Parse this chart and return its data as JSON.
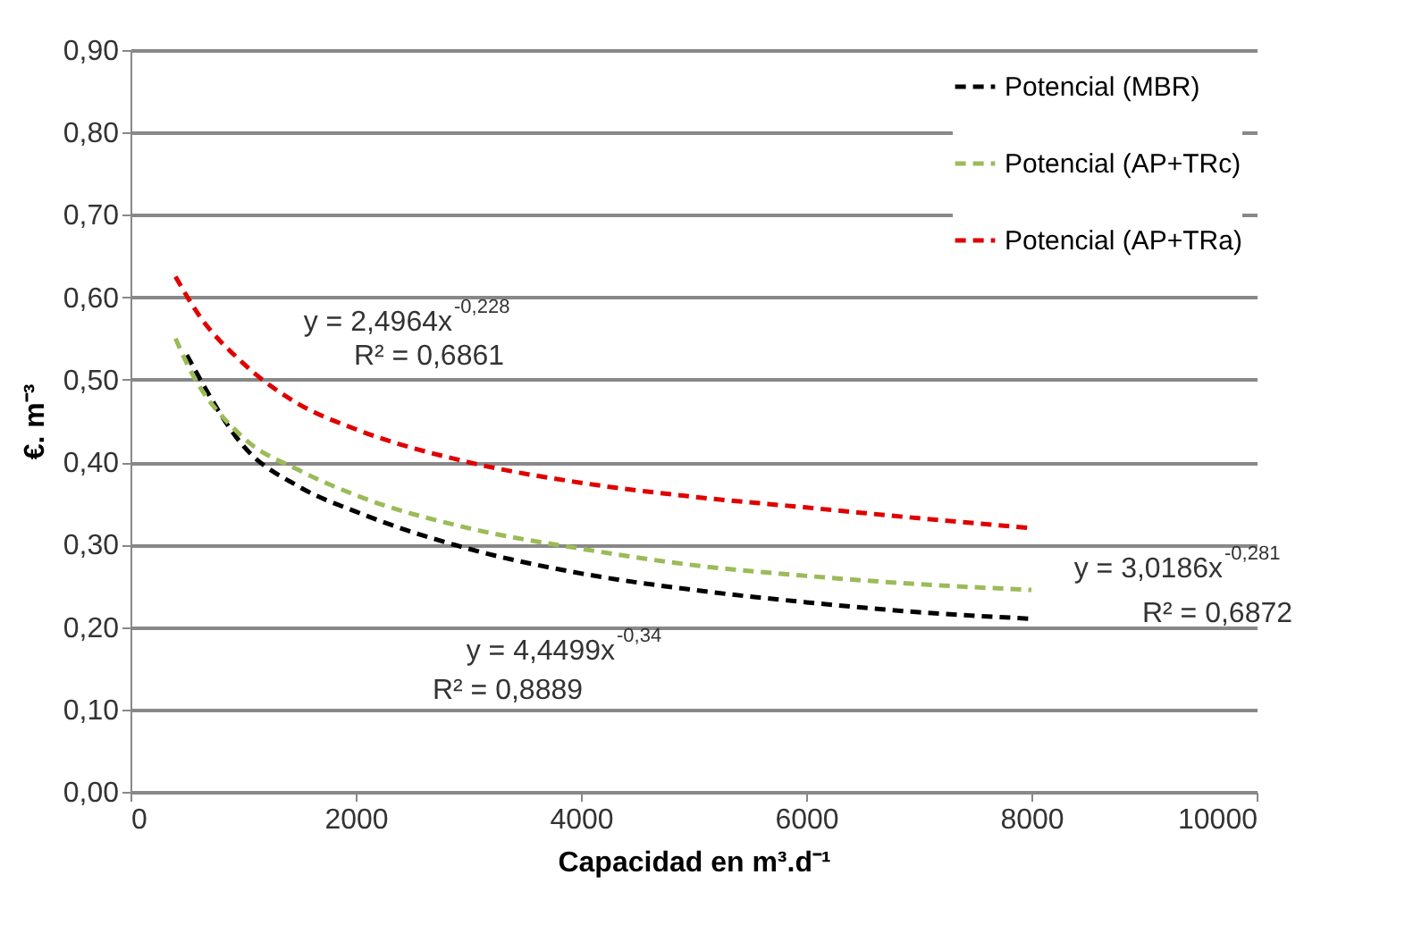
{
  "chart_data": {
    "type": "line",
    "xlabel": "Capacidad en m³.d⁻¹",
    "ylabel": "€. m⁻³",
    "xlim": [
      0,
      10000
    ],
    "xticks": [
      0,
      2000,
      4000,
      6000,
      8000,
      10000
    ],
    "ylim": [
      0,
      0.9
    ],
    "yticks": [
      {
        "value": 0,
        "label": "0,00"
      },
      {
        "value": 0.1,
        "label": "0,10"
      },
      {
        "value": 0.2,
        "label": "0,20"
      },
      {
        "value": 0.3,
        "label": "0,30"
      },
      {
        "value": 0.4,
        "label": "0,40"
      },
      {
        "value": 0.5,
        "label": "0,50"
      },
      {
        "value": 0.6,
        "label": "0,60"
      },
      {
        "value": 0.7,
        "label": "0,70"
      },
      {
        "value": 0.8,
        "label": "0,80"
      },
      {
        "value": 0.9,
        "label": "0,90"
      }
    ],
    "grid": "y",
    "legend": "top right",
    "line_style": "dashed",
    "marker": "none",
    "series": [
      {
        "name": "Potencial (MBR)",
        "color": "#000000",
        "x": [
          500,
          1000,
          1500,
          2000,
          3000,
          4000,
          5000,
          6000,
          7000,
          8000
        ],
        "values": [
          0.53,
          0.42,
          0.37,
          0.34,
          0.295,
          0.265,
          0.245,
          0.23,
          0.218,
          0.21
        ]
      },
      {
        "name": "Potencial (AP+TRc)",
        "color": "#9bbb59",
        "x": [
          400,
          500,
          1000,
          1500,
          2000,
          3000,
          4000,
          5000,
          6000,
          7000,
          8000
        ],
        "values": [
          0.55,
          0.52,
          0.43,
          0.39,
          0.36,
          0.32,
          0.295,
          0.275,
          0.262,
          0.252,
          0.245
        ]
      },
      {
        "name": "Potencial (AP+TRa)",
        "color": "#e00000",
        "x": [
          400,
          600,
          1000,
          1500,
          2000,
          3000,
          4000,
          5000,
          6000,
          7000,
          8000
        ],
        "values": [
          0.625,
          0.58,
          0.52,
          0.47,
          0.44,
          0.4,
          0.375,
          0.358,
          0.345,
          0.332,
          0.32
        ]
      }
    ],
    "annotations": [
      "y = 2,4964x$^{-0,228}$",
      "R² = 0,6861",
      "y = 4,4499x$^{-0,34}$",
      "R² = 0,8889",
      "y = 3,0186x$^{-0,281}$",
      "R² = 0,6872"
    ]
  }
}
